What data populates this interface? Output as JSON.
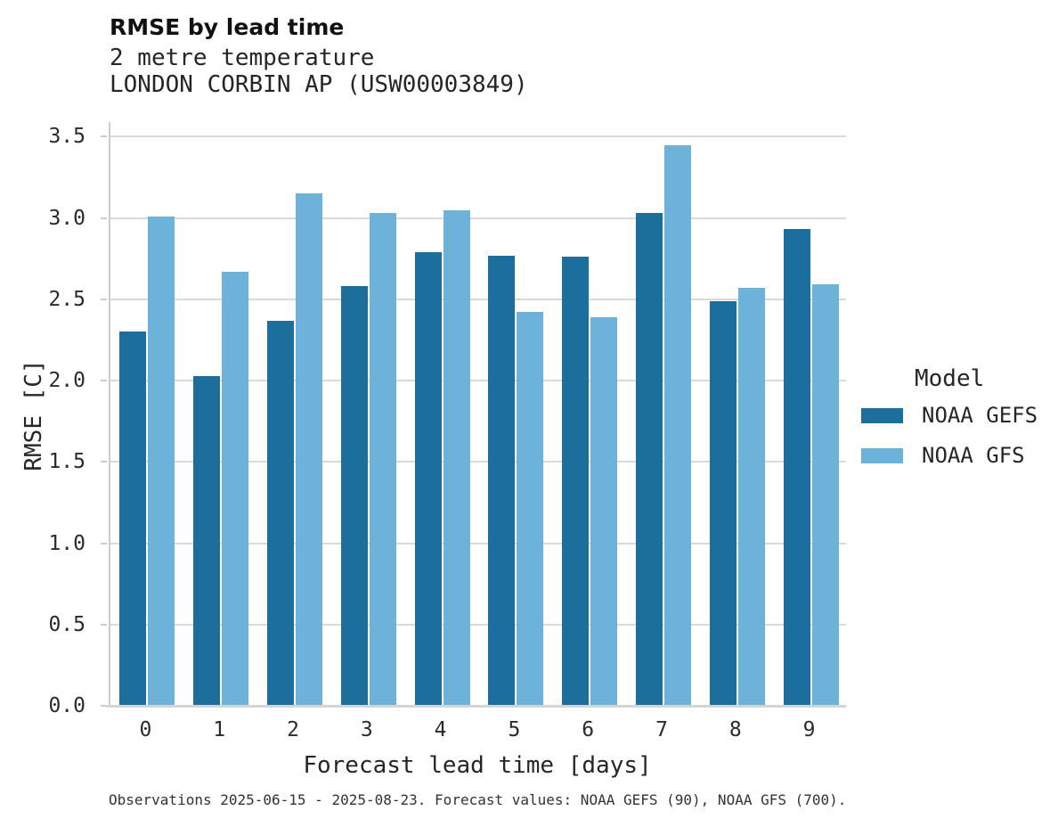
{
  "header": {
    "title": "RMSE by lead time",
    "subtitle_line1": "2 metre temperature",
    "subtitle_line2": "LONDON CORBIN AP (USW00003849)"
  },
  "footer": {
    "caption": "Observations 2025-06-15 - 2025-08-23. Forecast values: NOAA GEFS (90), NOAA GFS (700)."
  },
  "legend": {
    "title": "Model"
  },
  "colors": {
    "gefs_bar": "#1c6e9c",
    "gfs_bar": "#6db2d8",
    "gridline": "#d9d9d9",
    "spine": "#cccccc"
  },
  "chart_data": {
    "type": "bar",
    "title": "RMSE by lead time",
    "subtitle": [
      "2 metre temperature",
      "LONDON CORBIN AP (USW00003849)"
    ],
    "categories": [
      "0",
      "1",
      "2",
      "3",
      "4",
      "5",
      "6",
      "7",
      "8",
      "9"
    ],
    "series": [
      {
        "name": "NOAA GEFS",
        "color": "#1c6e9c",
        "values": [
          2.3,
          2.03,
          2.37,
          2.58,
          2.79,
          2.77,
          2.76,
          3.03,
          2.49,
          2.93
        ]
      },
      {
        "name": "NOAA GFS",
        "color": "#6db2d8",
        "values": [
          3.01,
          2.67,
          3.15,
          3.03,
          3.05,
          2.42,
          2.39,
          3.45,
          2.57,
          2.59
        ]
      }
    ],
    "xlabel": "Forecast lead time [days]",
    "ylabel": "RMSE [C]",
    "ylim": [
      0,
      3.59
    ],
    "yticks": [
      0.0,
      0.5,
      1.0,
      1.5,
      2.0,
      2.5,
      3.0,
      3.5
    ],
    "ytick_labels": [
      "0.0",
      "0.5",
      "1.0",
      "1.5",
      "2.0",
      "2.5",
      "3.0",
      "3.5"
    ],
    "grid": true,
    "legend_title": "Model",
    "legend_position": "right",
    "note": "Observations 2025-06-15 - 2025-08-23. Forecast values: NOAA GEFS (90), NOAA GFS (700)."
  }
}
